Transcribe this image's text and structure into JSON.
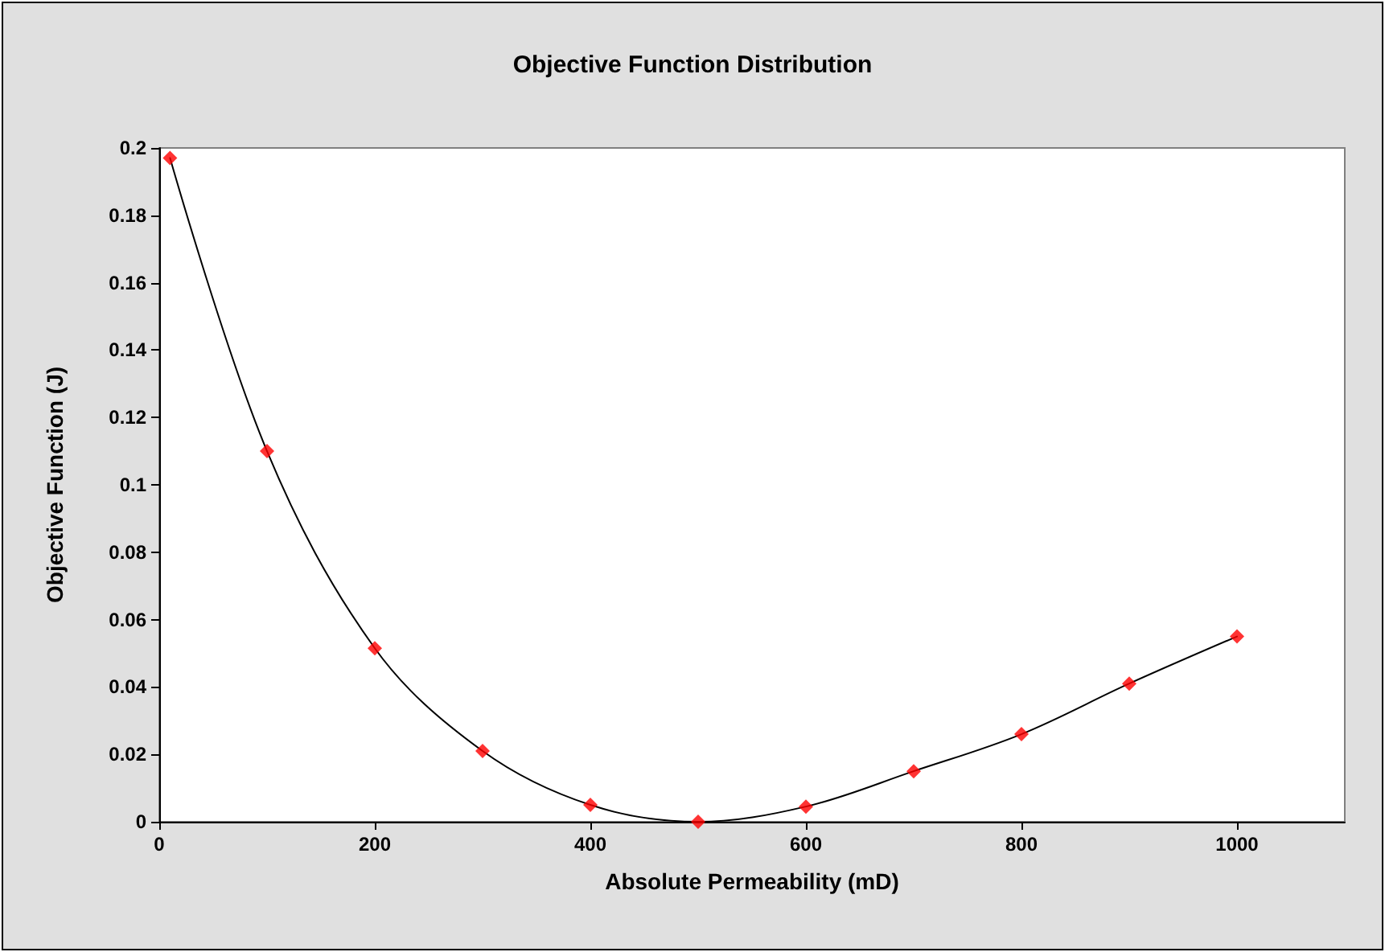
{
  "chart_data": {
    "type": "line",
    "title": "Objective Function Distribution",
    "xlabel": "Absolute Permeability (mD)",
    "ylabel": "Objective Function (J)",
    "x": [
      10,
      100,
      200,
      300,
      400,
      500,
      600,
      700,
      800,
      900,
      1000
    ],
    "series": [
      {
        "color": "#000000",
        "marker": "none",
        "values": [
          0.197,
          0.11,
          0.0515,
          0.021,
          0.005,
          0.0,
          0.0045,
          0.015,
          0.026,
          0.041,
          0.055
        ]
      },
      {
        "type": "scatter",
        "color": "#ff0000",
        "marker": "diamond",
        "values": [
          0.197,
          0.11,
          0.0515,
          0.021,
          0.005,
          0.0,
          0.0045,
          0.015,
          0.026,
          0.041,
          0.055
        ]
      }
    ],
    "xlim": [
      0,
      1100
    ],
    "xticks": [
      0,
      200,
      400,
      600,
      800,
      1000
    ],
    "ylim": [
      0,
      0.2
    ],
    "yticks": [
      0,
      0.02,
      0.04,
      0.06,
      0.08,
      0.1,
      0.12,
      0.14,
      0.16,
      0.18,
      0.2
    ],
    "grid": false
  }
}
